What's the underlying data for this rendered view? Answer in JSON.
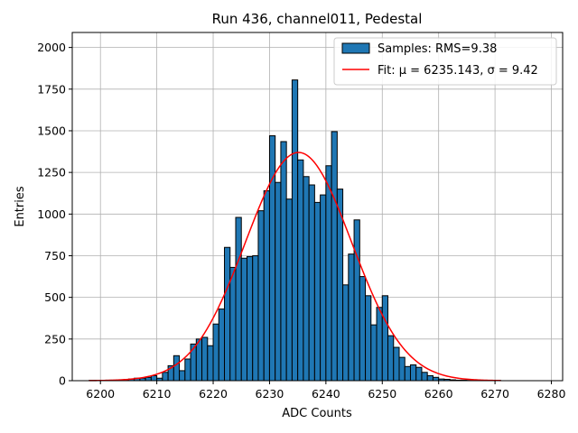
{
  "chart_data": {
    "type": "bar",
    "title": "Run 436, channel011, Pedestal",
    "xlabel": "ADC Counts",
    "ylabel": "Entries",
    "xlim": [
      6195,
      6282
    ],
    "ylim": [
      0,
      2090
    ],
    "grid": true,
    "legend_position": "top-right",
    "x_ticks": [
      6200,
      6210,
      6220,
      6230,
      6240,
      6250,
      6260,
      6270,
      6280
    ],
    "y_ticks": [
      0,
      250,
      500,
      750,
      1000,
      1250,
      1500,
      1750,
      2000
    ],
    "histogram": {
      "name": "Samples: RMS=9.38",
      "color": "#1f77b4",
      "edgecolor": "#000000",
      "bin_edges": [
        6198,
        6199,
        6200,
        6201,
        6202,
        6203,
        6204,
        6205,
        6206,
        6207,
        6208,
        6209,
        6210,
        6211,
        6212,
        6213,
        6214,
        6215,
        6216,
        6217,
        6218,
        6219,
        6220,
        6221,
        6222,
        6223,
        6224,
        6225,
        6226,
        6227,
        6228,
        6229,
        6230,
        6231,
        6232,
        6233,
        6234,
        6235,
        6236,
        6237,
        6238,
        6239,
        6240,
        6241,
        6242,
        6243,
        6244,
        6245,
        6246,
        6247,
        6248,
        6249,
        6250,
        6251,
        6252,
        6253,
        6254,
        6255,
        6256,
        6257,
        6258,
        6259,
        6260,
        6261,
        6262,
        6263,
        6264,
        6265,
        6266,
        6267,
        6268,
        6269,
        6270,
        6271
      ],
      "counts": [
        2,
        2,
        2,
        3,
        3,
        5,
        5,
        10,
        15,
        15,
        20,
        30,
        15,
        50,
        90,
        150,
        60,
        130,
        220,
        250,
        260,
        210,
        340,
        430,
        800,
        680,
        980,
        735,
        745,
        750,
        1020,
        1140,
        1470,
        1190,
        1435,
        1090,
        1805,
        1325,
        1225,
        1175,
        1070,
        1115,
        1290,
        1495,
        1150,
        575,
        760,
        965,
        625,
        510,
        335,
        440,
        510,
        270,
        200,
        140,
        85,
        95,
        80,
        50,
        30,
        20,
        10,
        8,
        5,
        3,
        3,
        2,
        2,
        2,
        2,
        2,
        2
      ]
    },
    "fit": {
      "name": "Fit: μ = 6235.143, σ = 9.42",
      "color": "#ff0000",
      "mu": 6235.143,
      "sigma": 9.42,
      "peak": 1370,
      "x_range": [
        6198,
        6271
      ]
    }
  }
}
